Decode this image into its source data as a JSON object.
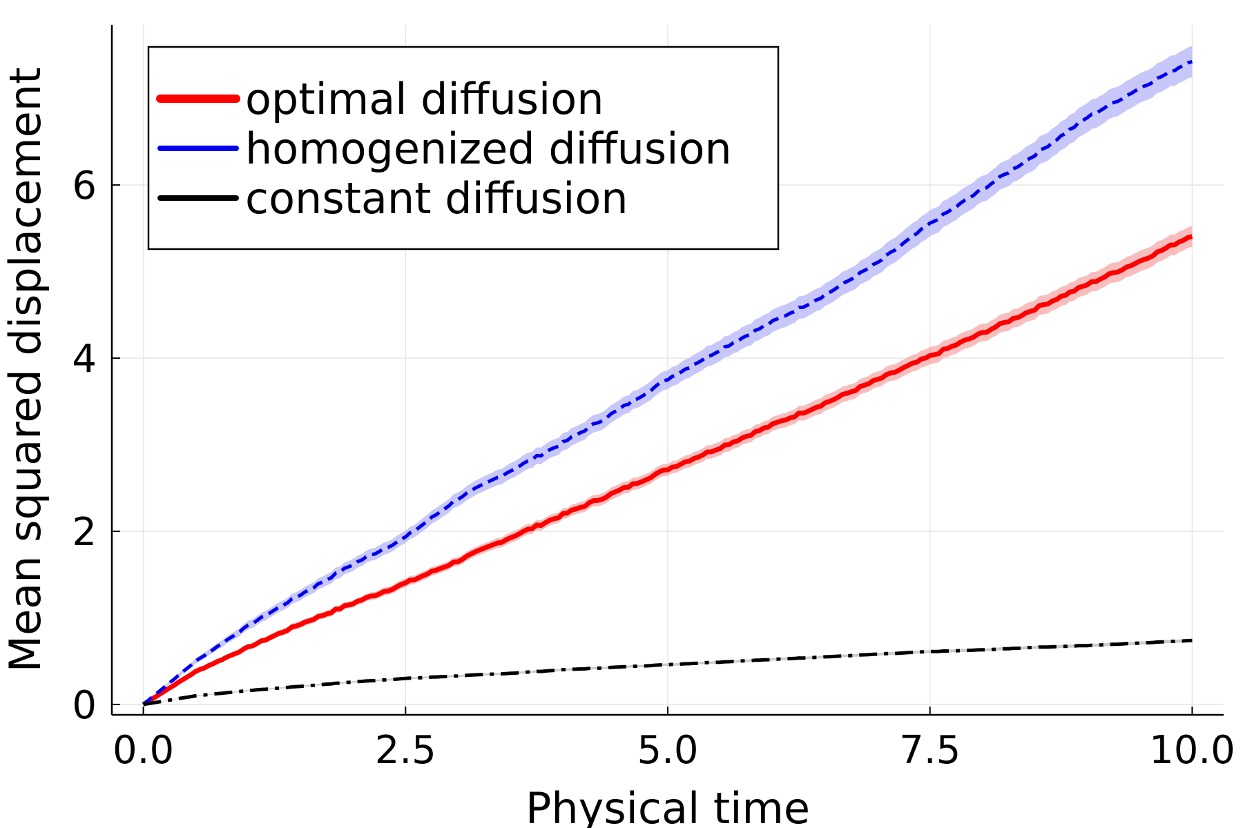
{
  "chart_data": {
    "type": "line",
    "title": "",
    "xlabel": "Physical time",
    "ylabel": "Mean squared displacement",
    "xlim": [
      -0.3,
      10.3
    ],
    "ylim": [
      -0.12,
      7.85
    ],
    "xticks": [
      0.0,
      2.5,
      5.0,
      7.5,
      10.0
    ],
    "xtick_labels": [
      "0.0",
      "2.5",
      "5.0",
      "7.5",
      "10.0"
    ],
    "yticks": [
      0,
      2,
      4,
      6
    ],
    "ytick_labels": [
      "0",
      "2",
      "4",
      "6"
    ],
    "grid": true,
    "legend_position": "top-left",
    "series": [
      {
        "name": "optimal diffusion",
        "color": "#ff0000",
        "band_color": "#f6a8a8",
        "style": "solid",
        "x": [
          0,
          0.5,
          1.0,
          1.5,
          2.0,
          2.5,
          3.0,
          3.5,
          4.0,
          4.5,
          5.0,
          5.5,
          6.0,
          6.5,
          7.0,
          7.5,
          8.0,
          8.5,
          9.0,
          9.5,
          10.0
        ],
        "y": [
          0,
          0.38,
          0.66,
          0.93,
          1.17,
          1.4,
          1.66,
          1.93,
          2.19,
          2.45,
          2.72,
          2.97,
          3.23,
          3.48,
          3.75,
          4.02,
          4.29,
          4.57,
          4.85,
          5.12,
          5.42
        ],
        "band": [
          0,
          0.02,
          0.03,
          0.04,
          0.04,
          0.05,
          0.05,
          0.06,
          0.06,
          0.07,
          0.07,
          0.08,
          0.08,
          0.09,
          0.09,
          0.1,
          0.1,
          0.11,
          0.11,
          0.12,
          0.12
        ]
      },
      {
        "name": "homogenized diffusion",
        "color": "#0000ee",
        "band_color": "#b4b4f8",
        "style": "dashed",
        "x": [
          0,
          0.5,
          1.0,
          1.5,
          2.0,
          2.5,
          3.0,
          3.5,
          4.0,
          4.5,
          5.0,
          5.5,
          6.0,
          6.5,
          7.0,
          7.5,
          8.0,
          8.5,
          9.0,
          9.5,
          10.0
        ],
        "y": [
          0,
          0.5,
          0.91,
          1.27,
          1.62,
          1.93,
          2.38,
          2.7,
          3.02,
          3.38,
          3.76,
          4.1,
          4.42,
          4.73,
          5.1,
          5.55,
          5.95,
          6.35,
          6.78,
          7.12,
          7.44
        ],
        "band": [
          0,
          0.03,
          0.05,
          0.06,
          0.07,
          0.07,
          0.08,
          0.09,
          0.1,
          0.1,
          0.11,
          0.12,
          0.13,
          0.13,
          0.14,
          0.15,
          0.15,
          0.16,
          0.17,
          0.17,
          0.18
        ]
      },
      {
        "name": "constant diffusion",
        "color": "#000000",
        "band_color": "#bbbbbb",
        "style": "dashdot",
        "x": [
          0,
          0.5,
          1.0,
          1.5,
          2.0,
          2.5,
          3.0,
          3.5,
          4.0,
          4.5,
          5.0,
          5.5,
          6.0,
          6.5,
          7.0,
          7.5,
          8.0,
          8.5,
          9.0,
          9.5,
          10.0
        ],
        "y": [
          0,
          0.1,
          0.16,
          0.21,
          0.26,
          0.3,
          0.33,
          0.36,
          0.4,
          0.43,
          0.46,
          0.49,
          0.52,
          0.55,
          0.58,
          0.61,
          0.63,
          0.66,
          0.68,
          0.71,
          0.74
        ],
        "band": [
          0,
          0.005,
          0.007,
          0.008,
          0.01,
          0.01,
          0.011,
          0.012,
          0.012,
          0.013,
          0.014,
          0.014,
          0.015,
          0.015,
          0.016,
          0.016,
          0.017,
          0.017,
          0.018,
          0.018,
          0.019
        ]
      }
    ]
  }
}
